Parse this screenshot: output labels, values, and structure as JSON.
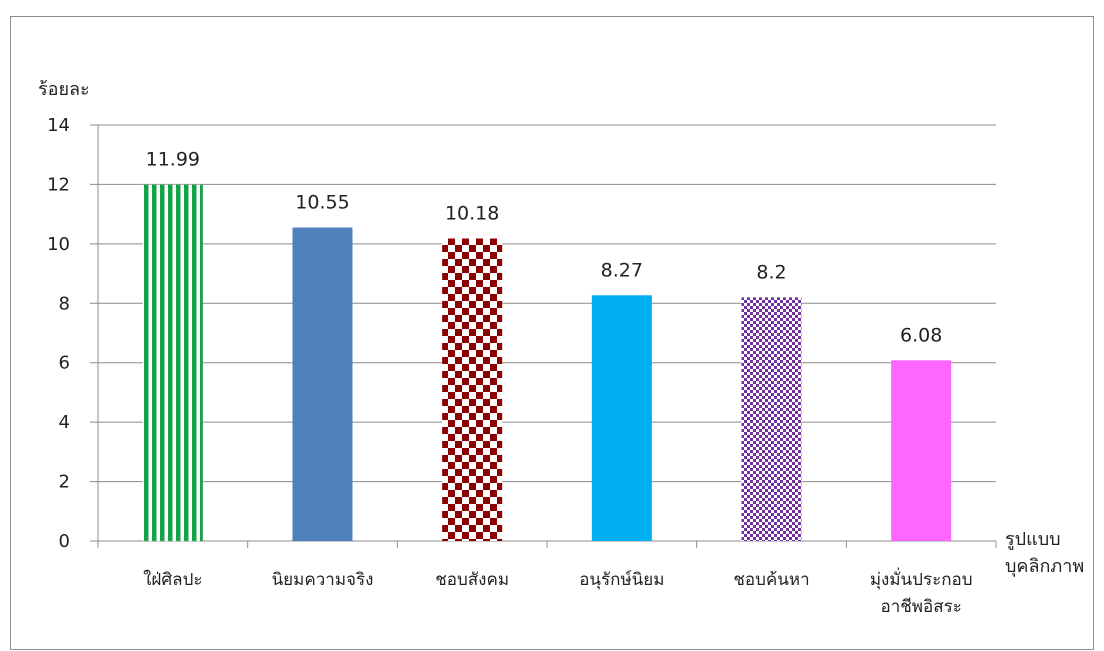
{
  "chart_data": {
    "type": "bar",
    "ylabel": "ร้อยละ",
    "xlabel_lines": [
      "รูปแบบ",
      "บุคลิกภาพ"
    ],
    "ylim": [
      0,
      14
    ],
    "yticks": [
      0,
      2,
      4,
      6,
      8,
      10,
      12,
      14
    ],
    "grid": true,
    "categories": [
      [
        "ใฝ่ศิลปะ"
      ],
      [
        "นิยมความจริง"
      ],
      [
        "ชอบสังคม"
      ],
      [
        "อนุรักษ์นิยม"
      ],
      [
        "ชอบค้นหา"
      ],
      [
        "มุ่งมั่นประกอบ",
        "อาชีพอิสระ"
      ]
    ],
    "values": [
      11.99,
      10.55,
      10.18,
      8.27,
      8.2,
      6.08
    ],
    "value_labels": [
      "11.99",
      "10.55",
      "10.18",
      "8.27",
      "8.2",
      "6.08"
    ],
    "bar_fills": [
      "stripes-green",
      "solid-blue",
      "checker-darkred",
      "solid-cyan",
      "dots-purple",
      "solid-magenta"
    ],
    "colors": {
      "green": "#17a34a",
      "blue": "#4f81bd",
      "darkred": "#8b0000",
      "cyan": "#00b0f0",
      "purple": "#7030a0",
      "magenta": "#ff66ff",
      "grid": "#8c8c8c"
    }
  }
}
